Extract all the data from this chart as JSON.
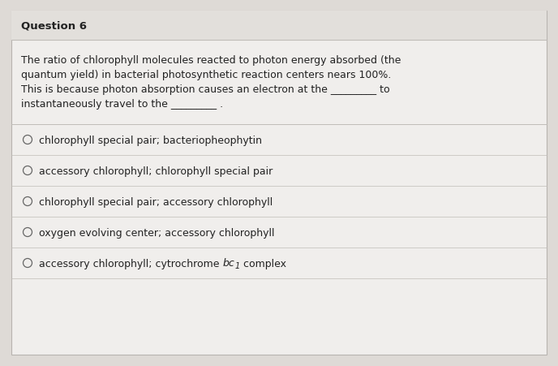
{
  "title": "Question 6",
  "q_line1": "The ratio of chlorophyll molecules reacted to photon energy absorbed (the",
  "q_line2": "quantum yield) in bacterial photosynthetic reaction centers nears 100%.",
  "q_line3": "This is because photon absorption causes an electron at the _________ to",
  "q_line4": "instantaneously travel to the _________ .",
  "options": [
    "chlorophyll special pair; bacteriopheophytin",
    "accessory chlorophyll; chlorophyll special pair",
    "chlorophyll special pair; accessory chlorophyll",
    "oxygen evolving center; accessory chlorophyll"
  ],
  "last_option_pre": "accessory chlorophyll; cytrochrome ",
  "last_option_bc": "bc",
  "last_option_sub": "1",
  "last_option_post": " complex",
  "bg_outer": "#dedad6",
  "bg_inner": "#f0eeec",
  "bg_title": "#e2dfdb",
  "divider_color": "#c0bcb8",
  "text_color": "#222222",
  "title_fontsize": 9.5,
  "text_fontsize": 9.0,
  "option_fontsize": 9.0,
  "figwidth": 6.88,
  "figheight": 4.52,
  "dpi": 100
}
